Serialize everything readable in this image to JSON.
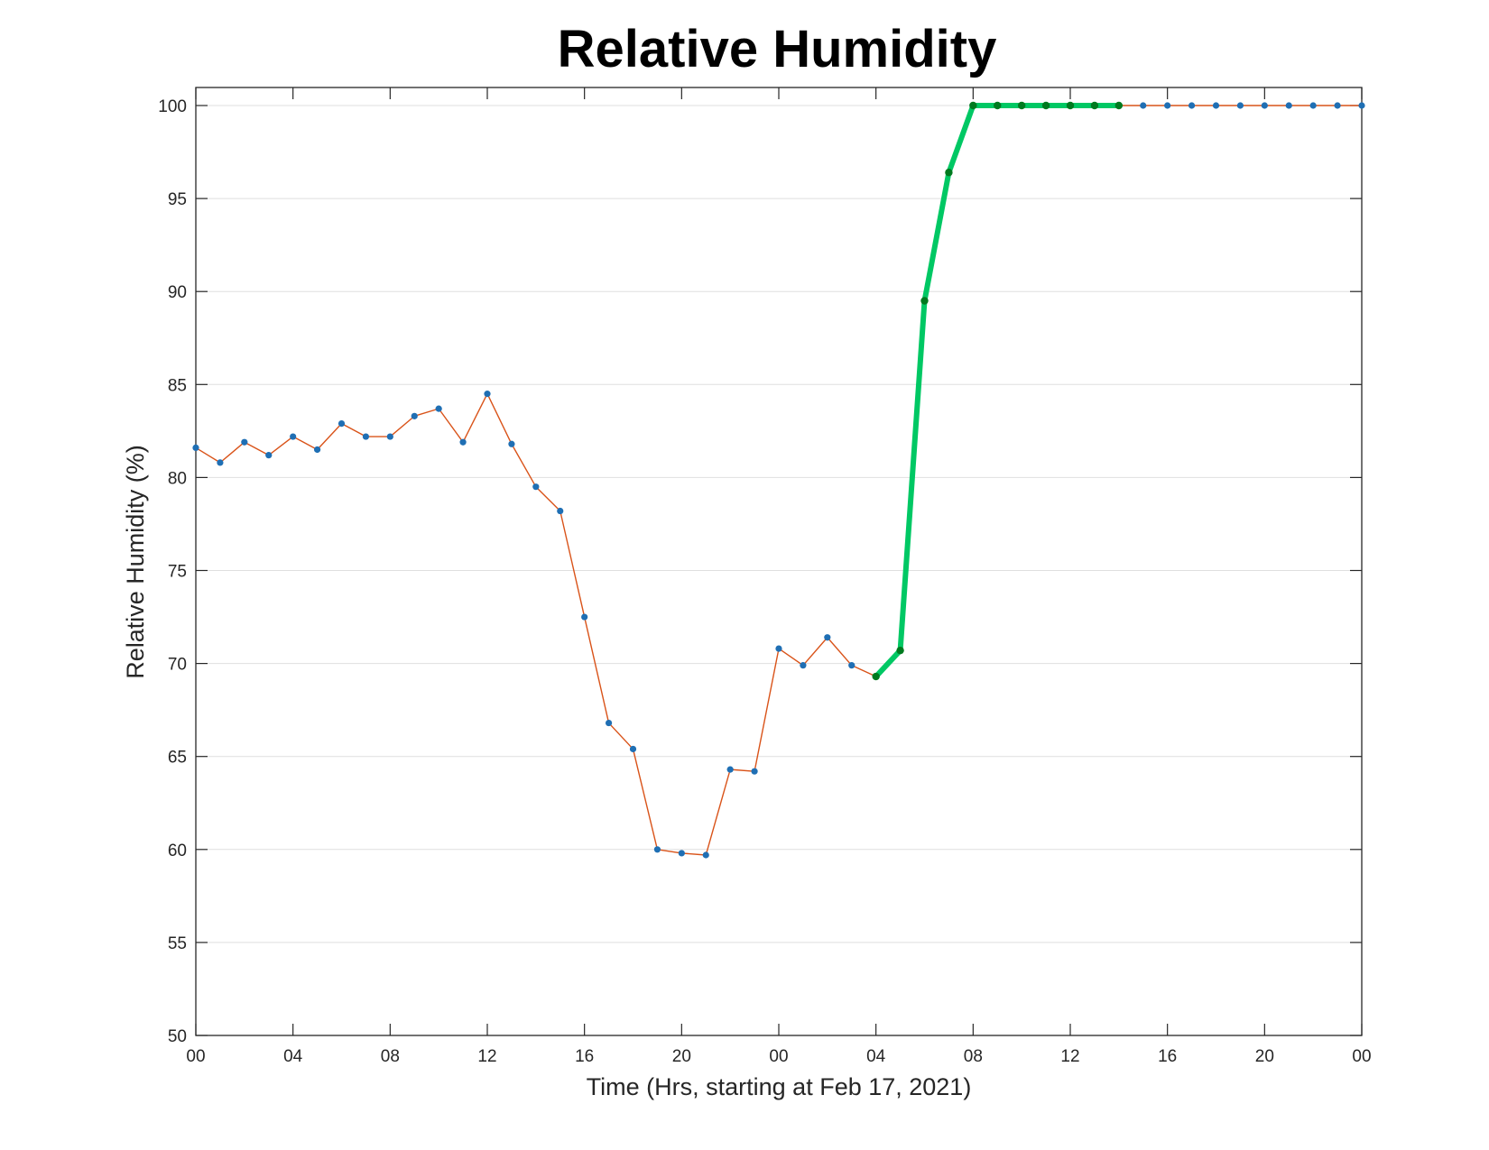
{
  "chart_data": {
    "type": "line",
    "title": "Relative Humidity",
    "xlabel": "Time (Hrs, starting at Feb 17, 2021)",
    "ylabel": "Relative Humidity (%)",
    "ylim": [
      50,
      100
    ],
    "xlim": [
      0,
      48
    ],
    "x_tick_values": [
      0,
      4,
      8,
      12,
      16,
      20,
      24,
      28,
      32,
      36,
      40,
      44,
      48
    ],
    "x_tick_labels": [
      "00",
      "04",
      "08",
      "12",
      "16",
      "20",
      "00",
      "04",
      "08",
      "12",
      "16",
      "20",
      "00"
    ],
    "y_tick_values": [
      50,
      55,
      60,
      65,
      70,
      75,
      80,
      85,
      90,
      95,
      100
    ],
    "y_tick_labels": [
      "50",
      "55",
      "60",
      "65",
      "70",
      "75",
      "80",
      "85",
      "90",
      "95",
      "100"
    ],
    "grid": "horizontal",
    "legend": "none",
    "series": [
      {
        "color": "#d95319",
        "marker_color": "#1f6fb4",
        "x": [
          0,
          1,
          2,
          3,
          4,
          5,
          6,
          7,
          8,
          9,
          10,
          11,
          12,
          13,
          14,
          15,
          16,
          17,
          18,
          19,
          20,
          21,
          22,
          23,
          24,
          25,
          26,
          27,
          28,
          29,
          30,
          31,
          32,
          33,
          34,
          35,
          36,
          37,
          38,
          39,
          40,
          41,
          42,
          43,
          44,
          45,
          46,
          47,
          48
        ],
        "values": [
          81.6,
          80.8,
          81.9,
          81.2,
          82.2,
          81.5,
          82.9,
          82.2,
          82.2,
          83.3,
          83.7,
          81.9,
          84.5,
          81.8,
          79.5,
          78.2,
          72.5,
          66.8,
          65.4,
          60.0,
          59.8,
          59.7,
          64.3,
          64.2,
          70.8,
          69.9,
          71.4,
          69.9,
          69.3,
          70.7,
          89.5,
          96.4,
          100,
          100,
          100,
          100,
          100,
          100,
          100,
          100,
          100,
          100,
          100,
          100,
          100,
          100,
          100,
          100,
          100
        ]
      },
      {
        "color": "#00c864",
        "marker_color": "#007a1f",
        "x": [
          28,
          29,
          30,
          31,
          32,
          33,
          34,
          35,
          36,
          37,
          38
        ],
        "values": [
          69.3,
          70.7,
          89.5,
          96.4,
          100,
          100,
          100,
          100,
          100,
          100,
          100
        ]
      }
    ]
  }
}
